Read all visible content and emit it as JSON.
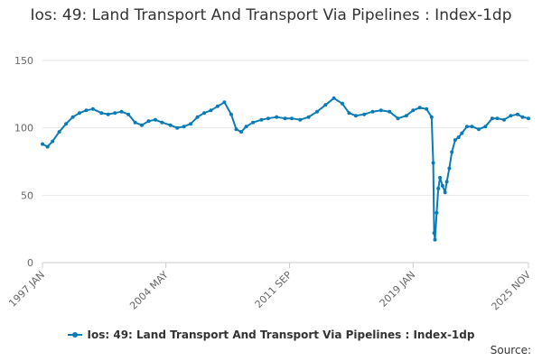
{
  "chart_data": {
    "type": "line",
    "title": "Ios: 49: Land Transport And Transport Via Pipelines : Index-1dp",
    "xlabel": "",
    "ylabel": "",
    "ylim": [
      0,
      150
    ],
    "yticks": [
      0,
      50,
      100,
      150
    ],
    "x_range": [
      1997.0,
      2025.85
    ],
    "xticks": [
      {
        "label": "1997 JAN",
        "x": 1997.0
      },
      {
        "label": "2004 MAY",
        "x": 2004.33
      },
      {
        "label": "2011 SEP",
        "x": 2011.67
      },
      {
        "label": "2019 JAN",
        "x": 2019.0
      },
      {
        "label": "2025 NOV",
        "x": 2025.85
      }
    ],
    "grid": true,
    "legend_position": "bottom",
    "series": [
      {
        "name": "Ios: 49: Land Transport And Transport Via Pipelines : Index-1dp",
        "color": "#0a7bb5",
        "x": [
          1997.0,
          1997.3,
          1997.6,
          1998.0,
          1998.4,
          1998.8,
          1999.2,
          1999.6,
          2000.0,
          2000.5,
          2000.9,
          2001.3,
          2001.7,
          2002.1,
          2002.5,
          2002.9,
          2003.3,
          2003.7,
          2004.1,
          2004.6,
          2005.0,
          2005.4,
          2005.8,
          2006.2,
          2006.6,
          2007.0,
          2007.4,
          2007.8,
          2008.2,
          2008.5,
          2008.8,
          2009.1,
          2009.5,
          2010.0,
          2010.4,
          2010.9,
          2011.4,
          2011.8,
          2012.3,
          2012.8,
          2013.3,
          2013.8,
          2014.3,
          2014.8,
          2015.2,
          2015.6,
          2016.1,
          2016.6,
          2017.1,
          2017.6,
          2018.1,
          2018.6,
          2019.0,
          2019.4,
          2019.8,
          2020.1,
          2020.2,
          2020.25,
          2020.3,
          2020.4,
          2020.5,
          2020.6,
          2020.75,
          2020.9,
          2021.0,
          2021.15,
          2021.3,
          2021.5,
          2021.7,
          2021.9,
          2022.2,
          2022.5,
          2022.9,
          2023.3,
          2023.7,
          2024.0,
          2024.4,
          2024.8,
          2025.2,
          2025.5,
          2025.85
        ],
        "values": [
          88,
          86,
          90,
          97,
          103,
          108,
          111,
          113,
          114,
          111,
          110,
          111,
          112,
          110,
          104,
          102,
          105,
          106,
          104,
          102,
          100,
          101,
          103,
          108,
          111,
          113,
          116,
          119,
          110,
          99,
          97,
          101,
          104,
          106,
          107,
          108,
          107,
          107,
          106,
          108,
          112,
          117,
          122,
          118,
          111,
          109,
          110,
          112,
          113,
          112,
          107,
          109,
          113,
          115,
          114,
          108,
          74,
          22,
          17,
          37,
          55,
          63,
          57,
          52,
          60,
          70,
          82,
          91,
          93,
          96,
          101,
          101,
          99,
          101,
          107,
          107,
          106,
          109,
          110,
          108,
          107
        ]
      }
    ],
    "source_label": "Source:"
  }
}
